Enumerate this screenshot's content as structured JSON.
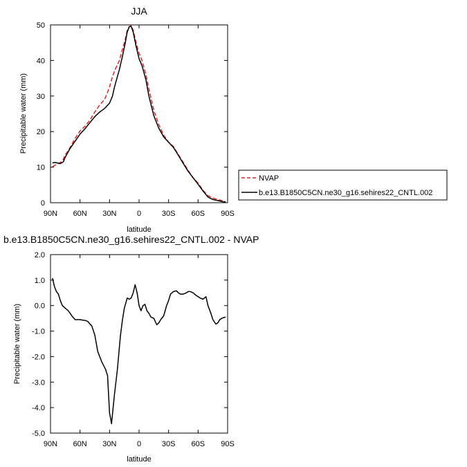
{
  "chart_data": [
    {
      "type": "line",
      "title": "JJA",
      "xlabel": "latitude",
      "ylabel": "Precipitable water (mm)",
      "xlim": [
        90,
        -90
      ],
      "ylim": [
        0,
        50
      ],
      "x_ticks": [
        90,
        60,
        30,
        0,
        -30,
        -60,
        -90
      ],
      "x_tick_labels": [
        "90N",
        "60N",
        "30N",
        "0",
        "30S",
        "60S",
        "90S"
      ],
      "y_ticks": [
        0,
        10,
        20,
        30,
        40,
        50
      ],
      "y_tick_labels": [
        "0",
        "10",
        "20",
        "30",
        "40",
        "50"
      ],
      "legend": {
        "placement": "right",
        "entries": [
          "NVAP",
          "b.e13.B1850C5CN.ne30_g16.sehires22_CNTL.002"
        ]
      },
      "series": [
        {
          "name": "NVAP",
          "color": "#e8211f",
          "dash": "dashed",
          "x": [
            88,
            85,
            82,
            80,
            77,
            75,
            72,
            70,
            65,
            60,
            55,
            50,
            45,
            40,
            35,
            30,
            27,
            25,
            20,
            17,
            14,
            12,
            10,
            8,
            6,
            3,
            0,
            -3,
            -7,
            -10,
            -15,
            -20,
            -25,
            -30,
            -35,
            -40,
            -45,
            -50,
            -55,
            -60,
            -65,
            -70,
            -75,
            -80,
            -85,
            -88
          ],
          "y": [
            10.1,
            10.6,
            11.0,
            11.3,
            12.2,
            13.5,
            14.6,
            15.6,
            18.1,
            20.2,
            21.5,
            23.2,
            25.5,
            27.5,
            29.0,
            32.5,
            35.5,
            37.0,
            40.0,
            43.0,
            46.0,
            48.5,
            49.5,
            49.8,
            48.5,
            45.0,
            42.0,
            40.0,
            36.0,
            32.0,
            26.0,
            22.0,
            19.0,
            17.0,
            15.8,
            13.5,
            11.3,
            9.0,
            7.0,
            5.5,
            3.5,
            2.0,
            1.3,
            0.9,
            0.5,
            0.3
          ]
        },
        {
          "name": "b.e13.B1850C5CN.ne30_g16.sehires22_CNTL.002",
          "color": "#000000",
          "dash": "solid",
          "x": [
            88,
            85,
            82,
            80,
            77,
            75,
            72,
            70,
            65,
            60,
            55,
            50,
            45,
            40,
            35,
            30,
            27,
            25,
            20,
            17,
            14,
            12,
            10,
            8,
            6,
            3,
            0,
            -3,
            -7,
            -10,
            -15,
            -20,
            -25,
            -30,
            -35,
            -40,
            -45,
            -50,
            -55,
            -60,
            -65,
            -70,
            -75,
            -80,
            -85,
            -88
          ],
          "y": [
            11.2,
            11.3,
            11.1,
            11.0,
            11.5,
            12.8,
            14.3,
            15.3,
            17.3,
            19.3,
            20.8,
            22.5,
            24.2,
            25.5,
            26.5,
            28.0,
            30.0,
            32.5,
            37.5,
            41.0,
            45.0,
            48.0,
            49.5,
            49.6,
            48.0,
            44.0,
            40.5,
            38.5,
            34.5,
            30.0,
            24.5,
            21.0,
            18.5,
            17.0,
            15.5,
            13.3,
            11.0,
            8.8,
            7.0,
            5.2,
            3.3,
            1.6,
            0.9,
            0.6,
            0.3,
            0.2
          ]
        }
      ]
    },
    {
      "type": "line",
      "title": "b.e13.B1850C5CN.ne30_g16.sehires22_CNTL.002 - NVAP",
      "xlabel": "latitude",
      "ylabel": "Precipitable water (mm)",
      "xlim": [
        90,
        -90
      ],
      "ylim": [
        -5.0,
        2.0
      ],
      "x_ticks": [
        90,
        60,
        30,
        0,
        -30,
        -60,
        -90
      ],
      "x_tick_labels": [
        "90N",
        "60N",
        "30N",
        "0",
        "30S",
        "60S",
        "90S"
      ],
      "y_ticks": [
        2.0,
        1.0,
        0.0,
        -1.0,
        -2.0,
        -3.0,
        -4.0,
        -5.0
      ],
      "y_tick_labels": [
        "2.0",
        "1.0",
        "0.0",
        "-1.0",
        "-2.0",
        "-3.0",
        "-4.0",
        "-5.0"
      ],
      "series": [
        {
          "color": "#000000",
          "dash": "solid",
          "x": [
            88,
            86,
            84,
            82,
            80,
            78,
            75,
            72,
            70,
            68,
            65,
            62,
            60,
            57,
            55,
            52,
            50,
            48,
            45,
            42,
            40,
            38,
            36,
            34,
            32,
            30,
            28,
            25,
            22,
            19,
            17,
            15,
            12,
            10,
            8,
            6,
            4,
            2,
            0,
            -2,
            -4,
            -6,
            -8,
            -10,
            -12,
            -15,
            -18,
            -20,
            -22,
            -25,
            -28,
            -30,
            -32,
            -35,
            -38,
            -40,
            -42,
            -45,
            -48,
            -50,
            -52,
            -55,
            -58,
            -60,
            -62,
            -65,
            -68,
            -70,
            -73,
            -75,
            -78,
            -80,
            -82,
            -85,
            -88
          ],
          "y": [
            1.08,
            0.75,
            0.55,
            0.45,
            0.2,
            0.0,
            -0.1,
            -0.2,
            -0.3,
            -0.42,
            -0.55,
            -0.55,
            -0.55,
            -0.57,
            -0.58,
            -0.62,
            -0.72,
            -0.8,
            -1.15,
            -1.8,
            -2.0,
            -2.2,
            -2.35,
            -2.5,
            -2.75,
            -4.2,
            -4.63,
            -3.5,
            -2.5,
            -1.2,
            -0.6,
            -0.1,
            0.3,
            0.25,
            0.3,
            0.5,
            0.82,
            0.5,
            0.0,
            -0.2,
            0.0,
            0.05,
            -0.2,
            -0.3,
            -0.45,
            -0.5,
            -0.75,
            -0.68,
            -0.55,
            -0.4,
            0.0,
            0.2,
            0.45,
            0.55,
            0.58,
            0.5,
            0.45,
            0.45,
            0.5,
            0.55,
            0.55,
            0.5,
            0.4,
            0.35,
            0.3,
            0.25,
            0.35,
            0.0,
            -0.3,
            -0.55,
            -0.72,
            -0.68,
            -0.55,
            -0.48,
            -0.45
          ]
        }
      ]
    }
  ]
}
